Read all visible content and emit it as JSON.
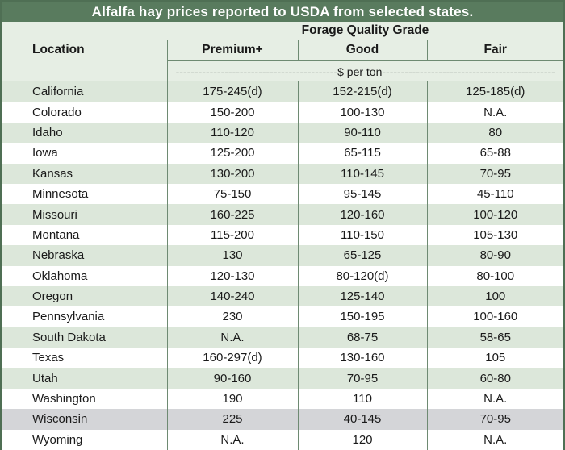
{
  "title": "Alfalfa hay prices reported to USDA from selected states.",
  "header": {
    "location": "Location",
    "group": "Forage Quality Grade",
    "premium": "Premium+",
    "good": "Good",
    "fair": "Fair",
    "unit": "-------------------------------------------$ per ton----------------------------------------------"
  },
  "rows": [
    {
      "location": "California",
      "premium": "175-245(d)",
      "good": "152-215(d)",
      "fair": "125-185(d)"
    },
    {
      "location": "Colorado",
      "premium": "150-200",
      "good": "100-130",
      "fair": "N.A."
    },
    {
      "location": "Idaho",
      "premium": "110-120",
      "good": "90-110",
      "fair": "80"
    },
    {
      "location": "Iowa",
      "premium": "125-200",
      "good": "65-115",
      "fair": "65-88"
    },
    {
      "location": "Kansas",
      "premium": "130-200",
      "good": "110-145",
      "fair": "70-95"
    },
    {
      "location": "Minnesota",
      "premium": "75-150",
      "good": "95-145",
      "fair": "45-110"
    },
    {
      "location": "Missouri",
      "premium": "160-225",
      "good": "120-160",
      "fair": "100-120"
    },
    {
      "location": "Montana",
      "premium": "115-200",
      "good": "110-150",
      "fair": "105-130"
    },
    {
      "location": "Nebraska",
      "premium": "130",
      "good": "65-125",
      "fair": "80-90"
    },
    {
      "location": "Oklahoma",
      "premium": "120-130",
      "good": "80-120(d)",
      "fair": "80-100"
    },
    {
      "location": "Oregon",
      "premium": "140-240",
      "good": "125-140",
      "fair": "100"
    },
    {
      "location": "Pennsylvania",
      "premium": "230",
      "good": "150-195",
      "fair": "100-160"
    },
    {
      "location": "South Dakota",
      "premium": "N.A.",
      "good": "68-75",
      "fair": "58-65"
    },
    {
      "location": "Texas",
      "premium": "160-297(d)",
      "good": "130-160",
      "fair": "105"
    },
    {
      "location": "Utah",
      "premium": "90-160",
      "good": "70-95",
      "fair": "60-80"
    },
    {
      "location": "Washington",
      "premium": "190",
      "good": "110",
      "fair": "N.A."
    },
    {
      "location": "Wisconsin",
      "premium": "225",
      "good": "40-145",
      "fair": "70-95"
    },
    {
      "location": "Wyoming",
      "premium": "N.A.",
      "good": "120",
      "fair": "N.A."
    }
  ]
}
